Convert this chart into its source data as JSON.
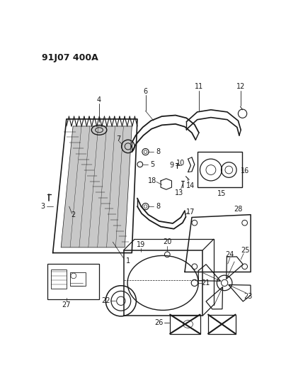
{
  "title": "91J07 400A",
  "bg_color": "#ffffff",
  "line_color": "#1a1a1a",
  "title_fontsize": 9,
  "label_fontsize": 7
}
